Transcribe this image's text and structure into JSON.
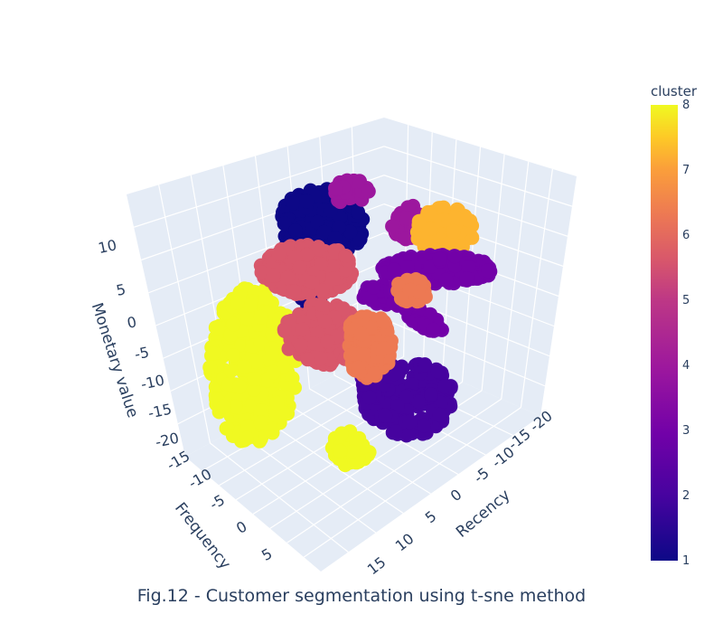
{
  "chart_data": {
    "type": "scatter",
    "mode": "3d",
    "caption": "Fig.12 - Customer segmentation using t-sne method",
    "axes": {
      "x": {
        "title": "Recency",
        "ticks": [
          "-20",
          "-15",
          "-10",
          "-5",
          "0",
          "5",
          "10",
          "15"
        ]
      },
      "y": {
        "title": "Frequency",
        "ticks": [
          "-15",
          "-10",
          "-5",
          "0",
          "5"
        ]
      },
      "z": {
        "title": "Monetary value",
        "ticks": [
          "10",
          "5",
          "0",
          "-5",
          "-10",
          "-15",
          "-20"
        ]
      }
    },
    "colorbar": {
      "title": "cluster",
      "range": [
        1,
        8
      ],
      "ticks": [
        "8",
        "7",
        "6",
        "5",
        "4",
        "3",
        "2",
        "1"
      ],
      "colorscale": "plasma"
    },
    "clusters": [
      {
        "cluster": 1,
        "color": "#0d0887"
      },
      {
        "cluster": 2,
        "color": "#46039f"
      },
      {
        "cluster": 3,
        "color": "#7201a8"
      },
      {
        "cluster": 4,
        "color": "#9c179e"
      },
      {
        "cluster": 5,
        "color": "#d8576b"
      },
      {
        "cluster": 6,
        "color": "#ed7953"
      },
      {
        "cluster": 7,
        "color": "#fdb42f"
      },
      {
        "cluster": 8,
        "color": "#f0f921"
      }
    ],
    "background": "#e5ecf6",
    "grid": true
  }
}
